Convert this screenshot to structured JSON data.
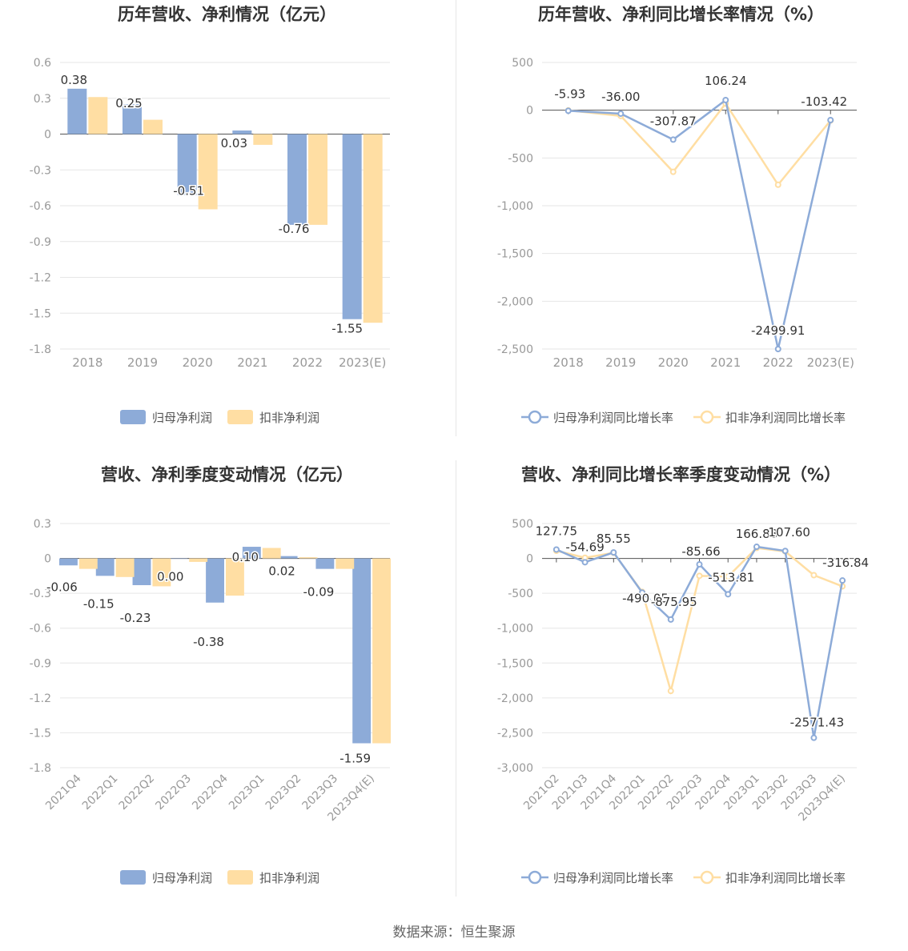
{
  "footer": "数据来源：恒生聚源",
  "colors": {
    "primary": "#8dabd8",
    "secondary": "#ffdea3",
    "grid": "#e6e6e6",
    "axis": "#555555",
    "text": "#999999",
    "label": "#333333"
  },
  "charts": [
    {
      "title": "历年营收、净利情况（亿元）",
      "chart_data": {
        "type": "bar",
        "categories": [
          "2018",
          "2019",
          "2020",
          "2021",
          "2022",
          "2023(E)"
        ],
        "yticks": [
          "0.6",
          "0.3",
          "0",
          "-0.3",
          "-0.6",
          "-0.9",
          "-1.2",
          "-1.5",
          "-1.8"
        ],
        "ylim": [
          -1.8,
          0.6
        ],
        "series": [
          {
            "name": "归母净利润",
            "values": [
              0.38,
              0.25,
              -0.51,
              0.03,
              -0.76,
              -1.55
            ],
            "labels": [
              "0.38",
              "0.25",
              "-0.51",
              "0.03",
              "-0.76",
              "-1.55"
            ]
          },
          {
            "name": "扣非净利润",
            "values": [
              0.31,
              0.12,
              -0.63,
              -0.09,
              -0.76,
              -1.58
            ]
          }
        ],
        "legend": "bottom"
      }
    },
    {
      "title": "历年营收、净利同比增长率情况（%）",
      "chart_data": {
        "type": "line",
        "categories": [
          "2018",
          "2019",
          "2020",
          "2021",
          "2022",
          "2023(E)"
        ],
        "yticks": [
          "500",
          "0",
          "-500",
          "-1,000",
          "-1,500",
          "-2,000",
          "-2,500"
        ],
        "ylim": [
          -2500,
          500
        ],
        "series": [
          {
            "name": "归母净利润同比增长率",
            "values": [
              -5.93,
              -36.0,
              -307.87,
              106.24,
              -2499.91,
              -103.42
            ],
            "labels": [
              "-5.93",
              "-36.00",
              "-307.87",
              "106.24",
              "-2499.91",
              "-103.42"
            ]
          },
          {
            "name": "扣非净利润同比增长率",
            "values": [
              -2,
              -60,
              -645,
              70,
              -780,
              -108
            ]
          }
        ],
        "legend": "bottom"
      }
    },
    {
      "title": "营收、净利季度变动情况（亿元）",
      "chart_data": {
        "type": "bar",
        "categories": [
          "2021Q4",
          "2022Q1",
          "2022Q2",
          "2022Q3",
          "2022Q4",
          "2023Q1",
          "2023Q2",
          "2023Q3",
          "2023Q4(E)"
        ],
        "yticks": [
          "0.3",
          "0",
          "-0.3",
          "-0.6",
          "-0.9",
          "-1.2",
          "-1.5",
          "-1.8"
        ],
        "ylim": [
          -1.8,
          0.3
        ],
        "series": [
          {
            "name": "归母净利润",
            "values": [
              -0.06,
              -0.15,
              -0.23,
              0.0,
              -0.38,
              0.1,
              0.02,
              -0.09,
              -1.59
            ],
            "labels": [
              "-0.06",
              "-0.15",
              "-0.23",
              "0.00",
              "-0.38",
              "0.10",
              "0.02",
              "-0.09",
              "-1.59"
            ]
          },
          {
            "name": "扣非净利润",
            "values": [
              -0.09,
              -0.16,
              -0.24,
              -0.03,
              -0.32,
              0.09,
              0.01,
              -0.09,
              -1.59
            ]
          }
        ],
        "legend": "bottom"
      }
    },
    {
      "title": "营收、净利同比增长率季度变动情况（%）",
      "chart_data": {
        "type": "line",
        "categories": [
          "2021Q2",
          "2021Q3",
          "2021Q4",
          "2022Q1",
          "2022Q2",
          "2022Q3",
          "2022Q4",
          "2023Q1",
          "2023Q2",
          "2023Q3",
          "2023Q4(E)"
        ],
        "yticks": [
          "500",
          "0",
          "-500",
          "-1,000",
          "-1,500",
          "-2,000",
          "-2,500",
          "-3,000"
        ],
        "ylim": [
          -3000,
          500
        ],
        "series": [
          {
            "name": "归母净利润同比增长率",
            "values": [
              127.75,
              -54.69,
              85.55,
              -490.05,
              -875.95,
              -85.66,
              -513.81,
              166.88,
              107.6,
              -2571.43,
              -316.84
            ],
            "labels": [
              "127.75",
              "-54.69",
              "85.55",
              "-490.05",
              "-875.95",
              "-85.66",
              "-513.81",
              "166.88",
              "107.60",
              "-2571.43",
              "-316.84"
            ]
          },
          {
            "name": "扣非净利润同比增长率",
            "values": [
              110,
              10,
              80,
              -480,
              -1900,
              -250,
              -260,
              150,
              100,
              -240,
              -400
            ]
          }
        ],
        "legend": "bottom"
      }
    }
  ]
}
